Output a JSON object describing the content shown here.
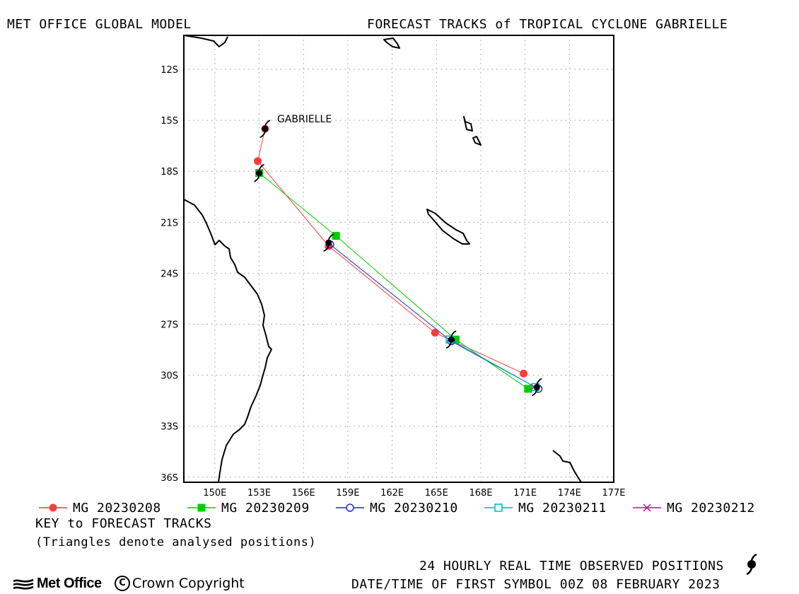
{
  "header": {
    "left_title": "MET OFFICE GLOBAL MODEL",
    "right_title": "FORECAST TRACKS of TROPICAL CYCLONE GABRIELLE"
  },
  "map": {
    "storm_label": "GABRIELLE",
    "lat_labels": [
      "12S",
      "15S",
      "18S",
      "21S",
      "24S",
      "27S",
      "30S",
      "33S",
      "36S"
    ],
    "lon_labels": [
      "150E",
      "153E",
      "156E",
      "159E",
      "162E",
      "165E",
      "168E",
      "171E",
      "174E",
      "177E"
    ],
    "lat_values": [
      -12,
      -15,
      -18,
      -21,
      -24,
      -27,
      -30,
      -33,
      -36
    ],
    "lon_values": [
      150,
      153,
      156,
      159,
      162,
      165,
      168,
      171,
      174,
      177
    ],
    "extent": {
      "lon_min": 147.9,
      "lon_max": 177.0,
      "lat_min": -36.3,
      "lat_max": -10.0
    },
    "land_color": "#000000",
    "grid": "dotted"
  },
  "chart_data": {
    "type": "scatter",
    "title": "FORECAST TRACKS of TROPICAL CYCLONE GABRIELLE",
    "series": [
      {
        "name": "MG 20230208",
        "color": "#ff3b3b",
        "marker": "filled-circle",
        "points": [
          [
            153.4,
            -15.5
          ],
          [
            152.9,
            -17.4
          ],
          [
            157.7,
            -22.4
          ],
          [
            164.9,
            -27.5
          ],
          [
            170.9,
            -29.9
          ]
        ]
      },
      {
        "name": "MG 20230209",
        "color": "#00cc00",
        "marker": "filled-square",
        "points": [
          [
            153.0,
            -18.1
          ],
          [
            158.2,
            -21.8
          ],
          [
            166.3,
            -27.9
          ],
          [
            171.2,
            -30.8
          ]
        ]
      },
      {
        "name": "MG 20230210",
        "color": "#1f2fbf",
        "marker": "open-circle",
        "points": [
          [
            157.8,
            -22.3
          ],
          [
            166.0,
            -28.0
          ],
          [
            171.9,
            -30.8
          ]
        ]
      },
      {
        "name": "MG 20230211",
        "color": "#00b7c7",
        "marker": "open-square",
        "points": [
          [
            165.9,
            -27.9
          ],
          [
            171.7,
            -30.7
          ]
        ]
      },
      {
        "name": "MG 20230212",
        "color": "#c0148c",
        "marker": "cross",
        "points": [
          [
            171.6,
            -30.7
          ]
        ]
      }
    ],
    "observed_positions": [
      [
        153.4,
        -15.5
      ],
      [
        153.0,
        -18.1
      ],
      [
        157.7,
        -22.2
      ],
      [
        166.0,
        -27.9
      ],
      [
        171.8,
        -30.7
      ]
    ]
  },
  "legend": {
    "entries": [
      "MG 20230208",
      "MG 20230209",
      "MG 20230210",
      "MG 20230211",
      "MG 20230212"
    ]
  },
  "footer": {
    "key_title": "KEY to FORECAST TRACKS",
    "key_note": "(Triangles denote analysed positions)",
    "observed_note": "24 HOURLY REAL TIME OBSERVED POSITIONS",
    "datetime_note": "DATE/TIME OF FIRST SYMBOL 00Z 08 FEBRUARY 2023",
    "logo_text": "Met Office",
    "copyright": "Crown Copyright",
    "copyright_symbol": "C"
  }
}
